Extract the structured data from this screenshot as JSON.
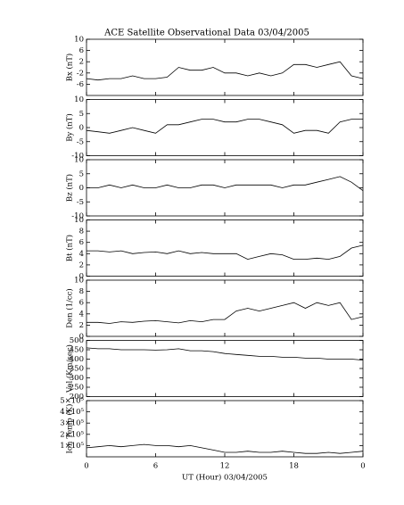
{
  "chart_data": [
    {
      "type": "line",
      "title": "ACE Satellite Observational Data   03/04/2005",
      "ylabel": "Bx (nT)",
      "color": "#000000",
      "x": [
        0,
        1,
        2,
        3,
        4,
        5,
        6,
        7,
        8,
        9,
        10,
        11,
        12,
        13,
        14,
        15,
        16,
        17,
        18,
        19,
        20,
        21,
        22,
        23,
        24
      ],
      "values": [
        -4,
        -4.5,
        -4,
        -4,
        -3,
        -4,
        -4,
        -3.5,
        0,
        -1,
        -1,
        0,
        -2,
        -2,
        -3,
        -2,
        -3,
        -2,
        1,
        1,
        0,
        1,
        2,
        -3,
        -4
      ],
      "xlim": [
        0,
        24
      ],
      "ylim": [
        -10,
        10
      ],
      "yticks": [
        10,
        6,
        2,
        -2,
        -6
      ]
    },
    {
      "type": "line",
      "ylabel": "By (nT)",
      "color": "#000000",
      "x": [
        0,
        1,
        2,
        3,
        4,
        5,
        6,
        7,
        8,
        9,
        10,
        11,
        12,
        13,
        14,
        15,
        16,
        17,
        18,
        19,
        20,
        21,
        22,
        23,
        24
      ],
      "values": [
        -1,
        -1.5,
        -2,
        -1,
        0,
        -1,
        -2,
        1,
        1,
        2,
        3,
        3,
        2,
        2,
        3,
        3,
        2,
        1,
        -2,
        -1,
        -1,
        -2,
        2,
        3,
        3
      ],
      "xlim": [
        0,
        24
      ],
      "ylim": [
        -10,
        10
      ],
      "yticks": [
        10,
        5,
        0,
        -5,
        -10
      ]
    },
    {
      "type": "line",
      "ylabel": "Bz (nT)",
      "color": "#000000",
      "x": [
        0,
        1,
        2,
        3,
        4,
        5,
        6,
        7,
        8,
        9,
        10,
        11,
        12,
        13,
        14,
        15,
        16,
        17,
        18,
        19,
        20,
        21,
        22,
        23,
        24
      ],
      "values": [
        0,
        0,
        1,
        0,
        1,
        0,
        0,
        1,
        0,
        0,
        1,
        1,
        0,
        1,
        1,
        1,
        1,
        0,
        1,
        1,
        2,
        3,
        4,
        2,
        -1
      ],
      "xlim": [
        0,
        24
      ],
      "ylim": [
        -10,
        10
      ],
      "yticks": [
        10,
        5,
        0,
        -5,
        -10
      ]
    },
    {
      "type": "line",
      "ylabel": "Bt (nT)",
      "color": "#000000",
      "x": [
        0,
        1,
        2,
        3,
        4,
        5,
        6,
        7,
        8,
        9,
        10,
        11,
        12,
        13,
        14,
        15,
        16,
        17,
        18,
        19,
        20,
        21,
        22,
        23,
        24
      ],
      "values": [
        4.5,
        4.5,
        4.3,
        4.5,
        4,
        4.2,
        4.3,
        4,
        4.5,
        4,
        4.2,
        4,
        4,
        4,
        3,
        3.5,
        4,
        3.8,
        3,
        3,
        3.2,
        3,
        3.5,
        5,
        5.5
      ],
      "xlim": [
        0,
        24
      ],
      "ylim": [
        0,
        10
      ],
      "yticks": [
        10,
        8,
        6,
        4,
        2,
        0
      ]
    },
    {
      "type": "line",
      "ylabel": "Den (1/cc)",
      "color": "#000000",
      "x": [
        0,
        1,
        2,
        3,
        4,
        5,
        6,
        7,
        8,
        9,
        10,
        11,
        12,
        13,
        14,
        15,
        16,
        17,
        18,
        19,
        20,
        21,
        22,
        23,
        24
      ],
      "values": [
        2.5,
        2.5,
        2.3,
        2.6,
        2.5,
        2.7,
        2.8,
        2.6,
        2.4,
        2.8,
        2.6,
        3,
        3,
        4.5,
        5,
        4.5,
        5,
        5.5,
        6,
        5,
        6,
        5.5,
        6,
        3,
        3.5
      ],
      "xlim": [
        0,
        24
      ],
      "ylim": [
        0,
        10
      ],
      "yticks": [
        10,
        8,
        6,
        4,
        2,
        0
      ]
    },
    {
      "type": "line",
      "ylabel": "Vel (Km/sec)",
      "color": "#000000",
      "x": [
        0,
        1,
        2,
        3,
        4,
        5,
        6,
        7,
        8,
        9,
        10,
        11,
        12,
        13,
        14,
        15,
        16,
        17,
        18,
        19,
        20,
        21,
        22,
        23,
        24
      ],
      "values": [
        460,
        455,
        455,
        450,
        450,
        450,
        448,
        450,
        455,
        445,
        445,
        440,
        430,
        425,
        420,
        415,
        415,
        410,
        410,
        405,
        405,
        400,
        400,
        400,
        395
      ],
      "xlim": [
        0,
        24
      ],
      "ylim": [
        200,
        500
      ],
      "yticks": [
        500,
        450,
        400,
        350,
        300,
        250,
        200
      ]
    },
    {
      "type": "line",
      "ylabel": "Ion Temp (K)",
      "xlabel": "UT (Hour)  03/04/2005",
      "color": "#000000",
      "x": [
        0,
        1,
        2,
        3,
        4,
        5,
        6,
        7,
        8,
        9,
        10,
        11,
        12,
        13,
        14,
        15,
        16,
        17,
        18,
        19,
        20,
        21,
        22,
        23,
        24
      ],
      "values": [
        80000,
        90000,
        100000,
        90000,
        100000,
        110000,
        100000,
        100000,
        90000,
        100000,
        80000,
        60000,
        40000,
        40000,
        50000,
        40000,
        40000,
        50000,
        40000,
        30000,
        30000,
        40000,
        30000,
        40000,
        50000
      ],
      "xlim": [
        0,
        24
      ],
      "ylim": [
        0,
        500000
      ],
      "yticks": [
        {
          "value": 500000,
          "label": "5×10⁵"
        },
        {
          "value": 400000,
          "label": "4×10⁵"
        },
        {
          "value": 300000,
          "label": "3×10⁵"
        },
        {
          "value": 200000,
          "label": "2×10⁵"
        },
        {
          "value": 100000,
          "label": "1×10⁵"
        }
      ],
      "xticks": [
        0,
        6,
        12,
        18,
        {
          "value": 24,
          "label": "0"
        }
      ]
    }
  ]
}
